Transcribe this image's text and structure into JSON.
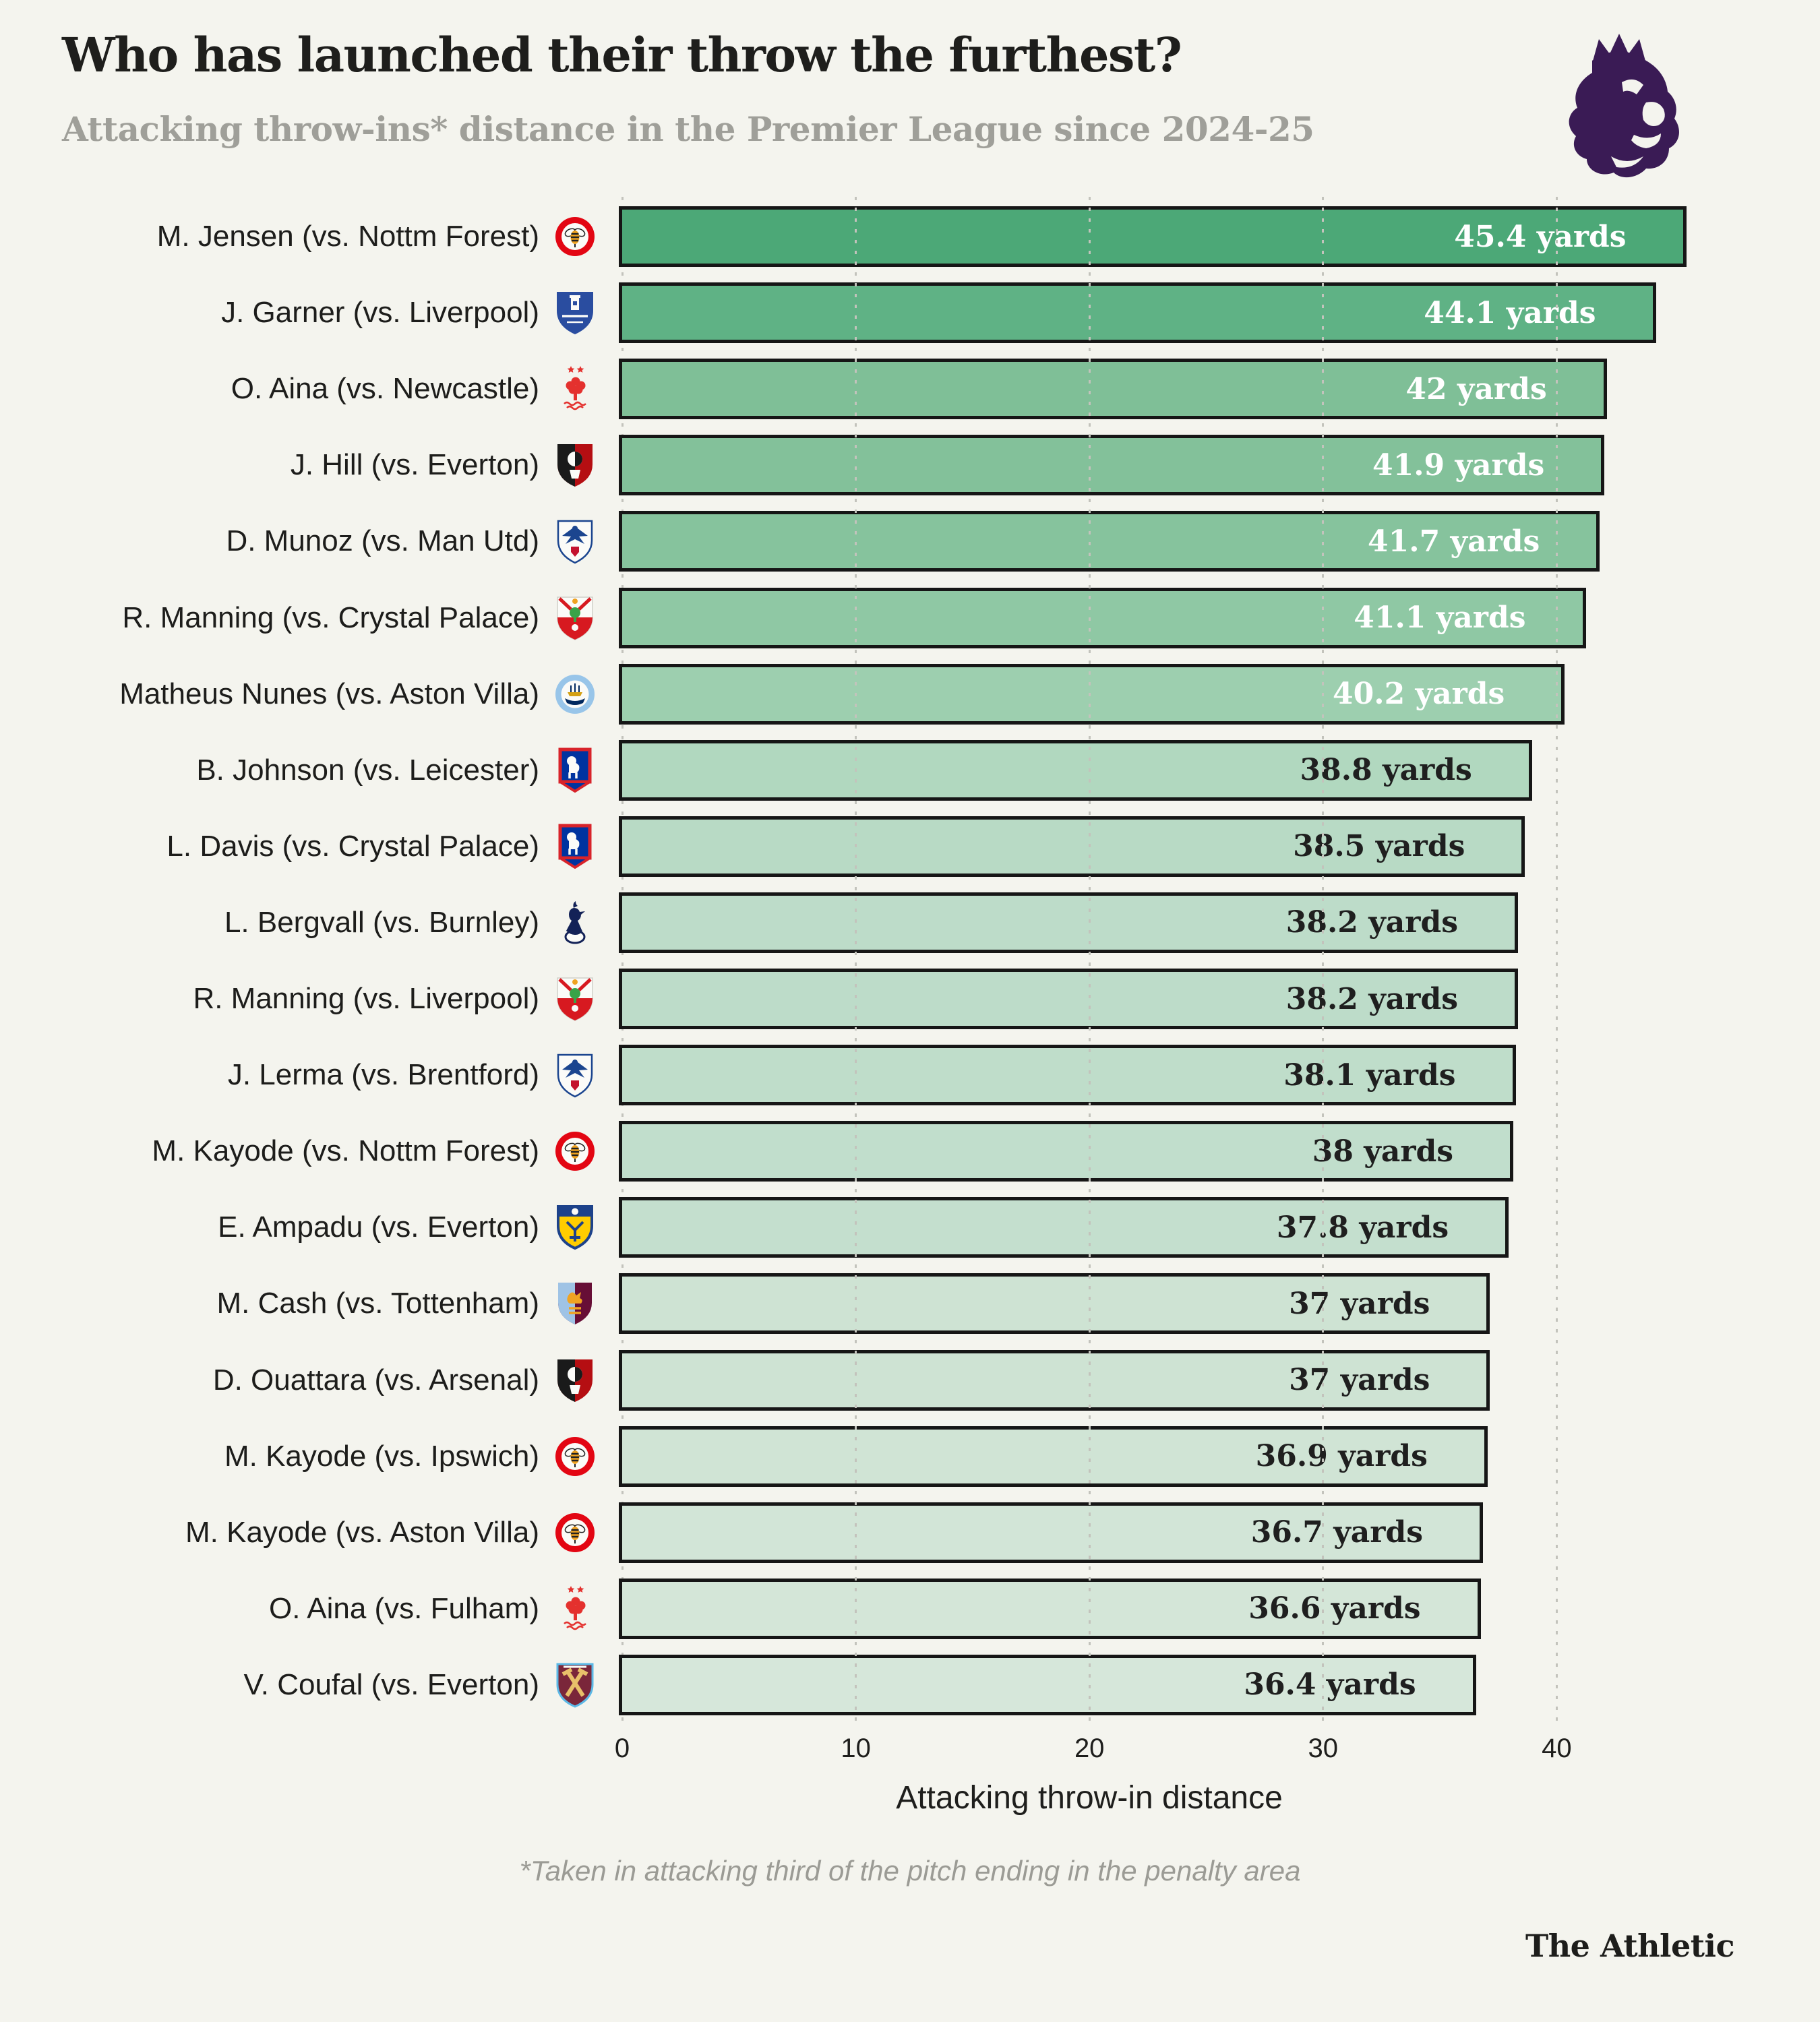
{
  "header": {
    "title": "Who has launched their throw the furthest?",
    "subtitle": "Attacking throw-ins* distance in the Premier League since 2024-25",
    "logo": "premier-league-lion"
  },
  "colors": {
    "background": "#f4f4ee",
    "bar_border": "#161616",
    "premier_league_purple": "#3a1b55",
    "grid": "#c3c3bc",
    "bar_text_light": "#ffffff",
    "bar_text_dark": "#1f1f1f",
    "subtitle_gray": "#9f9f99"
  },
  "chart_data": {
    "type": "bar",
    "orientation": "horizontal",
    "title": "Who has launched their throw the furthest?",
    "subtitle": "Attacking throw-ins* distance in the Premier League since 2024-25",
    "xlabel": "Attacking throw-in distance",
    "unit": "yards",
    "x_ticks": [
      0,
      10,
      20,
      30,
      40
    ],
    "xlim": [
      0,
      46
    ],
    "grid": "dotted-vertical",
    "rows": [
      {
        "label": "M. Jensen (vs. Nottm Forest)",
        "team": "brentford",
        "value": 45.4,
        "display": "45.4 yards",
        "color": "#4ca877",
        "text_color": "#ffffff"
      },
      {
        "label": "J. Garner (vs. Liverpool)",
        "team": "everton",
        "value": 44.1,
        "display": "44.1 yards",
        "color": "#5fb285",
        "text_color": "#ffffff"
      },
      {
        "label": "O. Aina (vs. Newcastle)",
        "team": "nottm-forest",
        "value": 42.0,
        "display": "42 yards",
        "color": "#7fbf97",
        "text_color": "#ffffff"
      },
      {
        "label": "J. Hill (vs. Everton)",
        "team": "bournemouth",
        "value": 41.9,
        "display": "41.9 yards",
        "color": "#83c19a",
        "text_color": "#ffffff"
      },
      {
        "label": "D. Munoz (vs. Man Utd)",
        "team": "crystal-palace",
        "value": 41.7,
        "display": "41.7 yards",
        "color": "#86c39d",
        "text_color": "#ffffff"
      },
      {
        "label": "R. Manning (vs. Crystal Palace)",
        "team": "southampton",
        "value": 41.1,
        "display": "41.1 yards",
        "color": "#8fc8a4",
        "text_color": "#ffffff"
      },
      {
        "label": "Matheus Nunes (vs. Aston Villa)",
        "team": "man-city",
        "value": 40.2,
        "display": "40.2 yards",
        "color": "#9dcfaf",
        "text_color": "#ffffff"
      },
      {
        "label": "B. Johnson (vs. Leicester)",
        "team": "ipswich",
        "value": 38.8,
        "display": "38.8 yards",
        "color": "#b1d8bf",
        "text_color": "#1f1f1f"
      },
      {
        "label": "L. Davis (vs. Crystal Palace)",
        "team": "ipswich",
        "value": 38.5,
        "display": "38.5 yards",
        "color": "#b8dac5",
        "text_color": "#1f1f1f"
      },
      {
        "label": "L. Bergvall (vs. Burnley)",
        "team": "tottenham",
        "value": 38.2,
        "display": "38.2 yards",
        "color": "#bddcc9",
        "text_color": "#1f1f1f"
      },
      {
        "label": "R. Manning (vs. Liverpool)",
        "team": "southampton",
        "value": 38.2,
        "display": "38.2 yards",
        "color": "#bddcc9",
        "text_color": "#1f1f1f"
      },
      {
        "label": "J. Lerma (vs. Brentford)",
        "team": "crystal-palace",
        "value": 38.1,
        "display": "38.1 yards",
        "color": "#bfddca",
        "text_color": "#1f1f1f"
      },
      {
        "label": "M. Kayode (vs. Nottm Forest)",
        "team": "brentford",
        "value": 38.0,
        "display": "38 yards",
        "color": "#c1decc",
        "text_color": "#1f1f1f"
      },
      {
        "label": "E. Ampadu (vs. Everton)",
        "team": "leeds",
        "value": 37.8,
        "display": "37.8 yards",
        "color": "#c4dfce",
        "text_color": "#1f1f1f"
      },
      {
        "label": "M. Cash (vs. Tottenham)",
        "team": "aston-villa",
        "value": 37.0,
        "display": "37 yards",
        "color": "#cee3d3",
        "text_color": "#1f1f1f"
      },
      {
        "label": "D. Ouattara (vs. Arsenal)",
        "team": "bournemouth",
        "value": 37.0,
        "display": "37 yards",
        "color": "#cee3d3",
        "text_color": "#1f1f1f"
      },
      {
        "label": "M. Kayode (vs. Ipswich)",
        "team": "brentford",
        "value": 36.9,
        "display": "36.9 yards",
        "color": "#d0e4d5",
        "text_color": "#1f1f1f"
      },
      {
        "label": "M. Kayode (vs. Aston Villa)",
        "team": "brentford",
        "value": 36.7,
        "display": "36.7 yards",
        "color": "#d2e5d7",
        "text_color": "#1f1f1f"
      },
      {
        "label": "O. Aina (vs. Fulham)",
        "team": "nottm-forest",
        "value": 36.6,
        "display": "36.6 yards",
        "color": "#d4e6d8",
        "text_color": "#1f1f1f"
      },
      {
        "label": "V. Coufal (vs. Everton)",
        "team": "west-ham",
        "value": 36.4,
        "display": "36.4 yards",
        "color": "#d6e7da",
        "text_color": "#1f1f1f"
      }
    ]
  },
  "footer": {
    "footnote": "*Taken in attacking third of the pitch ending in the penalty area",
    "brand": "The Athletic"
  }
}
